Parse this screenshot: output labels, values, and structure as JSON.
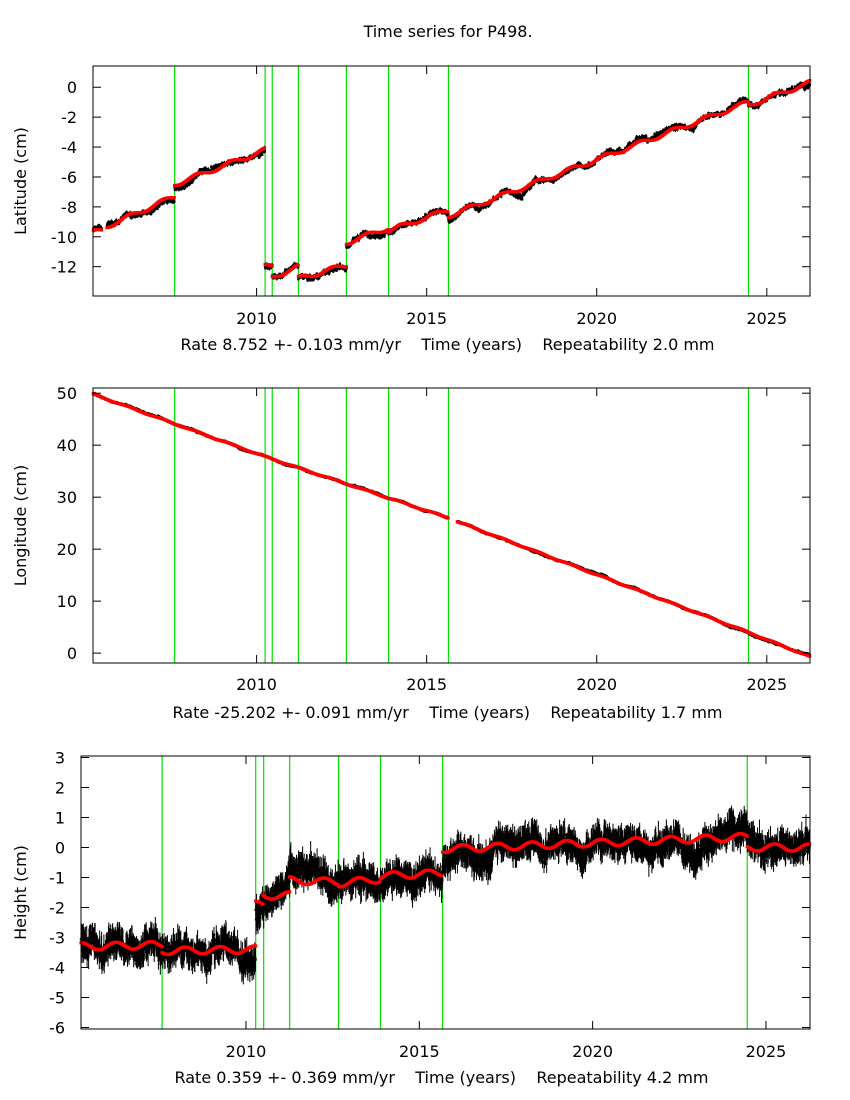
{
  "title": "Time series for P498.",
  "colors": {
    "data": "#000000",
    "model": "#ff0000",
    "offset_line": "#00e000",
    "frame": "#000000"
  },
  "chart_data": [
    {
      "type": "scatter",
      "ylabel": "Latitude (cm)",
      "xlabel": {
        "rate": "Rate 8.752 +- 0.103 mm/yr",
        "axis": "Time (years)",
        "repeat": "Repeatability 2.0 mm"
      },
      "xlim": [
        2005.19,
        2026.27
      ],
      "ylim": [
        -13.96,
        1.42
      ],
      "xticks": [
        "2010",
        "2015",
        "2020",
        "2025"
      ],
      "yticks": [
        "0",
        "-2",
        "-4",
        "-6",
        "-8",
        "-10",
        "-12"
      ],
      "offsets": [
        2007.59,
        2010.25,
        2010.46,
        2011.23,
        2012.64,
        2013.88,
        2015.64,
        2024.46
      ],
      "noise": 0.25,
      "seasonal": 0.15,
      "errbar": 0.1,
      "model_segments": [
        [
          2005.2,
          2005.45,
          -9.7,
          -9.6
        ],
        [
          2005.6,
          2007.59,
          -9.3,
          -7.3
        ],
        [
          2007.59,
          2010.25,
          -6.5,
          -4.2
        ],
        [
          2010.25,
          2010.46,
          -12.0,
          -12.0
        ],
        [
          2010.46,
          2011.23,
          -12.7,
          -12.0
        ],
        [
          2011.23,
          2012.64,
          -12.8,
          -11.9
        ],
        [
          2012.64,
          2013.88,
          -10.4,
          -9.4
        ],
        [
          2013.88,
          2015.64,
          -9.6,
          -8.2
        ],
        [
          2015.64,
          2024.46,
          -8.6,
          -1.0
        ],
        [
          2024.46,
          2026.27,
          -1.2,
          0.3
        ]
      ]
    },
    {
      "type": "scatter",
      "ylabel": "Longitude (cm)",
      "xlabel": {
        "rate": "Rate -25.202 +- 0.091 mm/yr",
        "axis": "Time (years)",
        "repeat": "Repeatability 1.7 mm"
      },
      "xlim": [
        2005.19,
        2026.27
      ],
      "ylim": [
        -1.9,
        51
      ],
      "xticks": [
        "2010",
        "2015",
        "2020",
        "2025"
      ],
      "yticks": [
        "50",
        "40",
        "30",
        "20",
        "10",
        "0"
      ],
      "offsets": [
        2007.59,
        2010.25,
        2010.46,
        2011.23,
        2012.64,
        2013.88,
        2015.64,
        2024.46
      ],
      "noise": 0.2,
      "seasonal": 0.1,
      "errbar": 0.1,
      "model_segments": [
        [
          2005.2,
          2010.25,
          49.8,
          37.8
        ],
        [
          2010.25,
          2015.64,
          37.8,
          26.0
        ],
        [
          2015.9,
          2024.46,
          25.3,
          4.0
        ],
        [
          2024.46,
          2026.27,
          4.0,
          -0.7
        ]
      ]
    },
    {
      "type": "scatter",
      "ylabel": "Height (cm)",
      "xlabel": {
        "rate": "Rate 0.359 +- 0.369 mm/yr",
        "axis": "Time (years)",
        "repeat": "Repeatability 4.2 mm"
      },
      "xlim": [
        2005.24,
        2026.27
      ],
      "ylim": [
        -6.05,
        3.05
      ],
      "xticks": [
        "2010",
        "2015",
        "2020",
        "2025"
      ],
      "yticks": [
        "3",
        "2",
        "1",
        "0",
        "-1",
        "-2",
        "-3",
        "-4",
        "-5",
        "-6"
      ],
      "offsets": [
        2007.58,
        2010.28,
        2010.51,
        2011.26,
        2012.67,
        2013.88,
        2015.67,
        2024.46
      ],
      "noise": 0.42,
      "seasonal": 0.12,
      "errbar": 0.35,
      "model_segments": [
        [
          2005.24,
          2007.58,
          -3.3,
          -3.25
        ],
        [
          2007.58,
          2010.28,
          -3.45,
          -3.4
        ],
        [
          2010.28,
          2010.51,
          -1.9,
          -1.9
        ],
        [
          2010.51,
          2011.26,
          -1.6,
          -1.6
        ],
        [
          2011.26,
          2012.67,
          -1.1,
          -1.15
        ],
        [
          2012.67,
          2013.88,
          -1.2,
          -1.05
        ],
        [
          2013.88,
          2015.67,
          -0.95,
          -0.85
        ],
        [
          2015.67,
          2024.46,
          -0.05,
          0.35
        ],
        [
          2024.46,
          2026.27,
          0.0,
          0.0
        ]
      ]
    }
  ]
}
